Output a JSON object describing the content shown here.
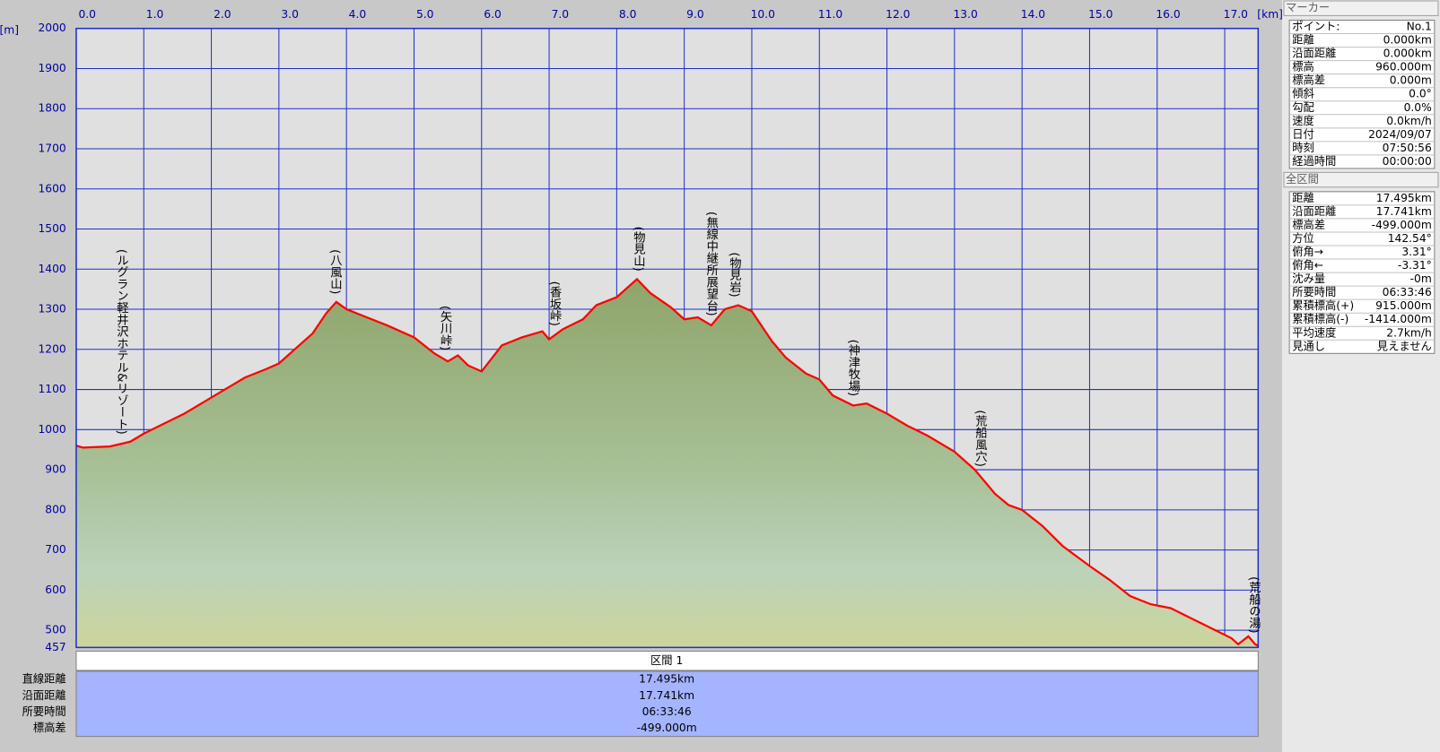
{
  "chart_data": {
    "type": "area",
    "x_label": "[km]",
    "y_label": "[m]",
    "x": [
      0,
      0.1,
      0.5,
      0.8,
      1.0,
      1.3,
      1.6,
      2.0,
      2.3,
      2.5,
      2.8,
      3.0,
      3.3,
      3.5,
      3.7,
      3.85,
      4.0,
      4.3,
      4.6,
      5.0,
      5.3,
      5.5,
      5.65,
      5.8,
      6.0,
      6.3,
      6.6,
      6.9,
      7.0,
      7.2,
      7.5,
      7.7,
      8.0,
      8.3,
      8.5,
      8.8,
      9.0,
      9.2,
      9.4,
      9.6,
      9.8,
      10.0,
      10.3,
      10.5,
      10.8,
      11.0,
      11.2,
      11.5,
      11.7,
      12.0,
      12.3,
      12.6,
      13.0,
      13.3,
      13.6,
      13.8,
      14.0,
      14.3,
      14.6,
      15.0,
      15.3,
      15.6,
      15.9,
      16.2,
      16.5,
      16.8,
      17.1,
      17.2,
      17.35,
      17.45,
      17.495
    ],
    "values": [
      960,
      955,
      958,
      970,
      990,
      1015,
      1040,
      1080,
      1110,
      1130,
      1150,
      1165,
      1210,
      1240,
      1290,
      1318,
      1300,
      1280,
      1260,
      1230,
      1190,
      1170,
      1185,
      1160,
      1145,
      1210,
      1230,
      1245,
      1225,
      1250,
      1275,
      1310,
      1330,
      1375,
      1340,
      1305,
      1275,
      1280,
      1260,
      1300,
      1310,
      1295,
      1220,
      1180,
      1140,
      1125,
      1085,
      1060,
      1065,
      1040,
      1010,
      985,
      945,
      900,
      840,
      812,
      800,
      760,
      710,
      660,
      625,
      585,
      565,
      555,
      530,
      505,
      480,
      465,
      485,
      465,
      461
    ],
    "color": "#ff0000",
    "xlim": [
      0,
      17.495
    ],
    "ylim": [
      457,
      2000
    ],
    "xticks": [
      {
        "value": 0,
        "label": "0.0"
      },
      {
        "value": 1,
        "label": "1.0"
      },
      {
        "value": 2,
        "label": "2.0"
      },
      {
        "value": 3,
        "label": "3.0"
      },
      {
        "value": 4,
        "label": "4.0"
      },
      {
        "value": 5,
        "label": "5.0"
      },
      {
        "value": 6,
        "label": "6.0"
      },
      {
        "value": 7,
        "label": "7.0"
      },
      {
        "value": 8,
        "label": "8.0"
      },
      {
        "value": 9,
        "label": "9.0"
      },
      {
        "value": 10,
        "label": "10.0"
      },
      {
        "value": 11,
        "label": "11.0"
      },
      {
        "value": 12,
        "label": "12.0"
      },
      {
        "value": 13,
        "label": "13.0"
      },
      {
        "value": 14,
        "label": "14.0"
      },
      {
        "value": 15,
        "label": "15.0"
      },
      {
        "value": 16,
        "label": "16.0"
      },
      {
        "value": 17,
        "label": "17.0"
      }
    ],
    "yticks": [
      457,
      500,
      600,
      700,
      800,
      900,
      1000,
      1100,
      1200,
      1300,
      1400,
      1500,
      1600,
      1700,
      1800,
      1900,
      2000
    ],
    "grid": true,
    "annotations": [
      {
        "text": "(ルグラン軽井沢ホテル&リゾート)",
        "x": 0.67
      },
      {
        "text": "(八風山)",
        "x": 3.83
      },
      {
        "text": "(矢川峠)",
        "x": 5.46
      },
      {
        "text": "(香坂峠)",
        "x": 7.08
      },
      {
        "text": "(物見山)",
        "x": 8.32
      },
      {
        "text": "(無線中継所展望台)",
        "x": 9.4
      },
      {
        "text": "(物見岩)",
        "x": 9.74
      },
      {
        "text": "(神津牧場)",
        "x": 11.5
      },
      {
        "text": "(荒船風穴)",
        "x": 13.38
      },
      {
        "text": "(荒船の湯)",
        "x": 17.43
      }
    ]
  },
  "marker_panel": {
    "title": "マーカー",
    "rows": [
      [
        "ポイント:",
        "No.1"
      ],
      [
        "距離",
        "0.000km"
      ],
      [
        "沿面距離",
        "0.000km"
      ],
      [
        "標高",
        "960.000m"
      ],
      [
        "標高差",
        "0.000m"
      ],
      [
        "傾斜",
        "0.0°"
      ],
      [
        "勾配",
        "0.0%"
      ],
      [
        "速度",
        "0.0km/h"
      ],
      [
        "日付",
        "2024/09/07"
      ],
      [
        "時刻",
        "07:50:56"
      ],
      [
        "経過時間",
        "00:00:00"
      ]
    ]
  },
  "summary_panel": {
    "title": "全区間",
    "rows": [
      [
        "距離",
        "17.495km"
      ],
      [
        "沿面距離",
        "17.741km"
      ],
      [
        "標高差",
        "-499.000m"
      ],
      [
        "方位",
        "142.54°"
      ],
      [
        "俯角→",
        "3.31°"
      ],
      [
        "俯角←",
        "-3.31°"
      ],
      [
        "沈み量",
        "-0m"
      ],
      [
        "所要時間",
        "06:33:46"
      ],
      [
        "累積標高(+)",
        "915.000m"
      ],
      [
        "累積標高(-)",
        "-1414.000m"
      ],
      [
        "平均速度",
        "2.7km/h"
      ],
      [
        "見通し",
        "見えません"
      ]
    ]
  },
  "section_table": {
    "title": "区間 1",
    "rows": [
      [
        "直線距離",
        "17.495km"
      ],
      [
        "沿面距離",
        "17.741km"
      ],
      [
        "所要時間",
        "06:33:46"
      ],
      [
        "標高差",
        "-499.000m"
      ]
    ]
  }
}
